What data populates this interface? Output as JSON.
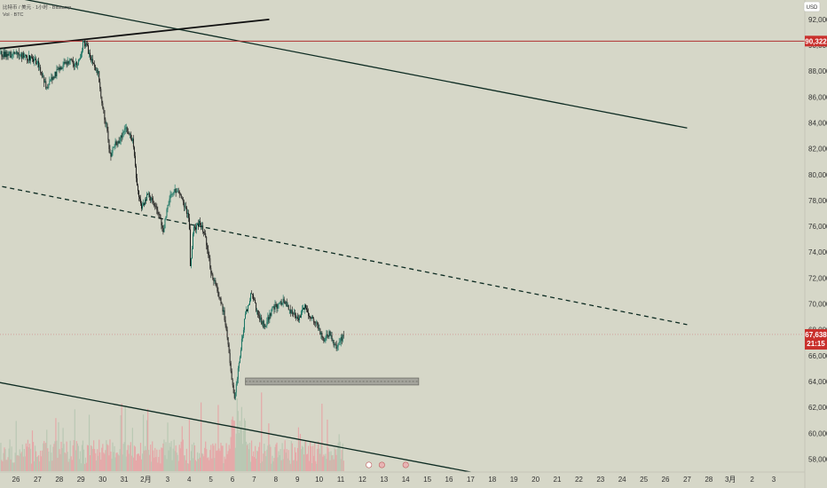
{
  "legend": {
    "line1": "比特币 / 美元 · 1小时 · Bitstamp",
    "line2": "Vol · BTC"
  },
  "currency": "USD",
  "chart_data": {
    "type": "candlestick",
    "title": "",
    "ylim": [
      57000,
      93500
    ],
    "y_ticks": [
      58000,
      60000,
      62000,
      64000,
      66000,
      68000,
      70000,
      72000,
      74000,
      76000,
      78000,
      80000,
      82000,
      84000,
      86000,
      88000,
      90000,
      92000
    ],
    "x_ticks": [
      "26",
      "27",
      "28",
      "29",
      "30",
      "31",
      "2月",
      "3",
      "4",
      "5",
      "6",
      "7",
      "8",
      "9",
      "10",
      "11",
      "12",
      "13",
      "14",
      "15",
      "16",
      "17",
      "18",
      "19",
      "20",
      "21",
      "22",
      "23",
      "24",
      "25",
      "26",
      "27",
      "28",
      "3月",
      "2",
      "3"
    ],
    "price_path": [
      [
        0,
        89300
      ],
      [
        0.5,
        89100
      ],
      [
        1.0,
        88600
      ],
      [
        1.4,
        86800
      ],
      [
        1.7,
        87500
      ],
      [
        2.0,
        88200
      ],
      [
        2.5,
        88900
      ],
      [
        2.8,
        88400
      ],
      [
        3.0,
        89200
      ],
      [
        3.1,
        90300
      ],
      [
        3.3,
        89800
      ],
      [
        3.5,
        88800
      ],
      [
        3.8,
        87800
      ],
      [
        4.0,
        85300
      ],
      [
        4.2,
        83500
      ],
      [
        4.35,
        81500
      ],
      [
        4.6,
        82400
      ],
      [
        4.9,
        82900
      ],
      [
        5.1,
        83600
      ],
      [
        5.4,
        82500
      ],
      [
        5.6,
        78800
      ],
      [
        5.8,
        77500
      ],
      [
        6.1,
        78400
      ],
      [
        6.4,
        77800
      ],
      [
        6.6,
        77000
      ],
      [
        6.8,
        75700
      ],
      [
        7.0,
        77500
      ],
      [
        7.2,
        78600
      ],
      [
        7.5,
        78900
      ],
      [
        7.8,
        77500
      ],
      [
        8.0,
        76500
      ],
      [
        8.05,
        73000
      ],
      [
        8.2,
        75700
      ],
      [
        8.5,
        76300
      ],
      [
        8.7,
        75600
      ],
      [
        9.0,
        72600
      ],
      [
        9.3,
        71000
      ],
      [
        9.6,
        69300
      ],
      [
        9.8,
        67000
      ],
      [
        9.95,
        64500
      ],
      [
        10.05,
        63200
      ],
      [
        10.1,
        62800
      ],
      [
        10.2,
        64100
      ],
      [
        10.4,
        66800
      ],
      [
        10.6,
        69200
      ],
      [
        10.9,
        70900
      ],
      [
        11.2,
        69000
      ],
      [
        11.5,
        68200
      ],
      [
        11.8,
        69500
      ],
      [
        12.1,
        69900
      ],
      [
        12.4,
        70300
      ],
      [
        12.7,
        69400
      ],
      [
        13.0,
        68700
      ],
      [
        13.3,
        69800
      ],
      [
        13.6,
        69100
      ],
      [
        13.9,
        68400
      ],
      [
        14.2,
        67300
      ],
      [
        14.5,
        67800
      ],
      [
        14.8,
        66500
      ],
      [
        15.0,
        67200
      ],
      [
        15.15,
        67638
      ]
    ],
    "last_price": "67,638",
    "countdown": "21:15",
    "resistance_level": "90,322",
    "support_zone": [
      63800,
      64200
    ],
    "trendlines": [
      {
        "style": "solid",
        "from": [
          -1,
          89700
        ],
        "to": [
          11.7,
          92000
        ]
      },
      {
        "style": "solid",
        "from": [
          -1,
          94000
        ],
        "to": [
          31,
          83600
        ]
      },
      {
        "style": "dashed",
        "from": [
          -1,
          79200
        ],
        "to": [
          31,
          68400
        ]
      },
      {
        "style": "solid",
        "from": [
          -1,
          64000
        ],
        "to": [
          21,
          57000
        ]
      }
    ],
    "colors": {
      "up": "#0d6f5d",
      "down": "#111111",
      "vol_up": "#b9c8b3",
      "vol_down": "#e5a8a8",
      "price_badge": "#c9302c",
      "resistance": "#b03030"
    }
  }
}
